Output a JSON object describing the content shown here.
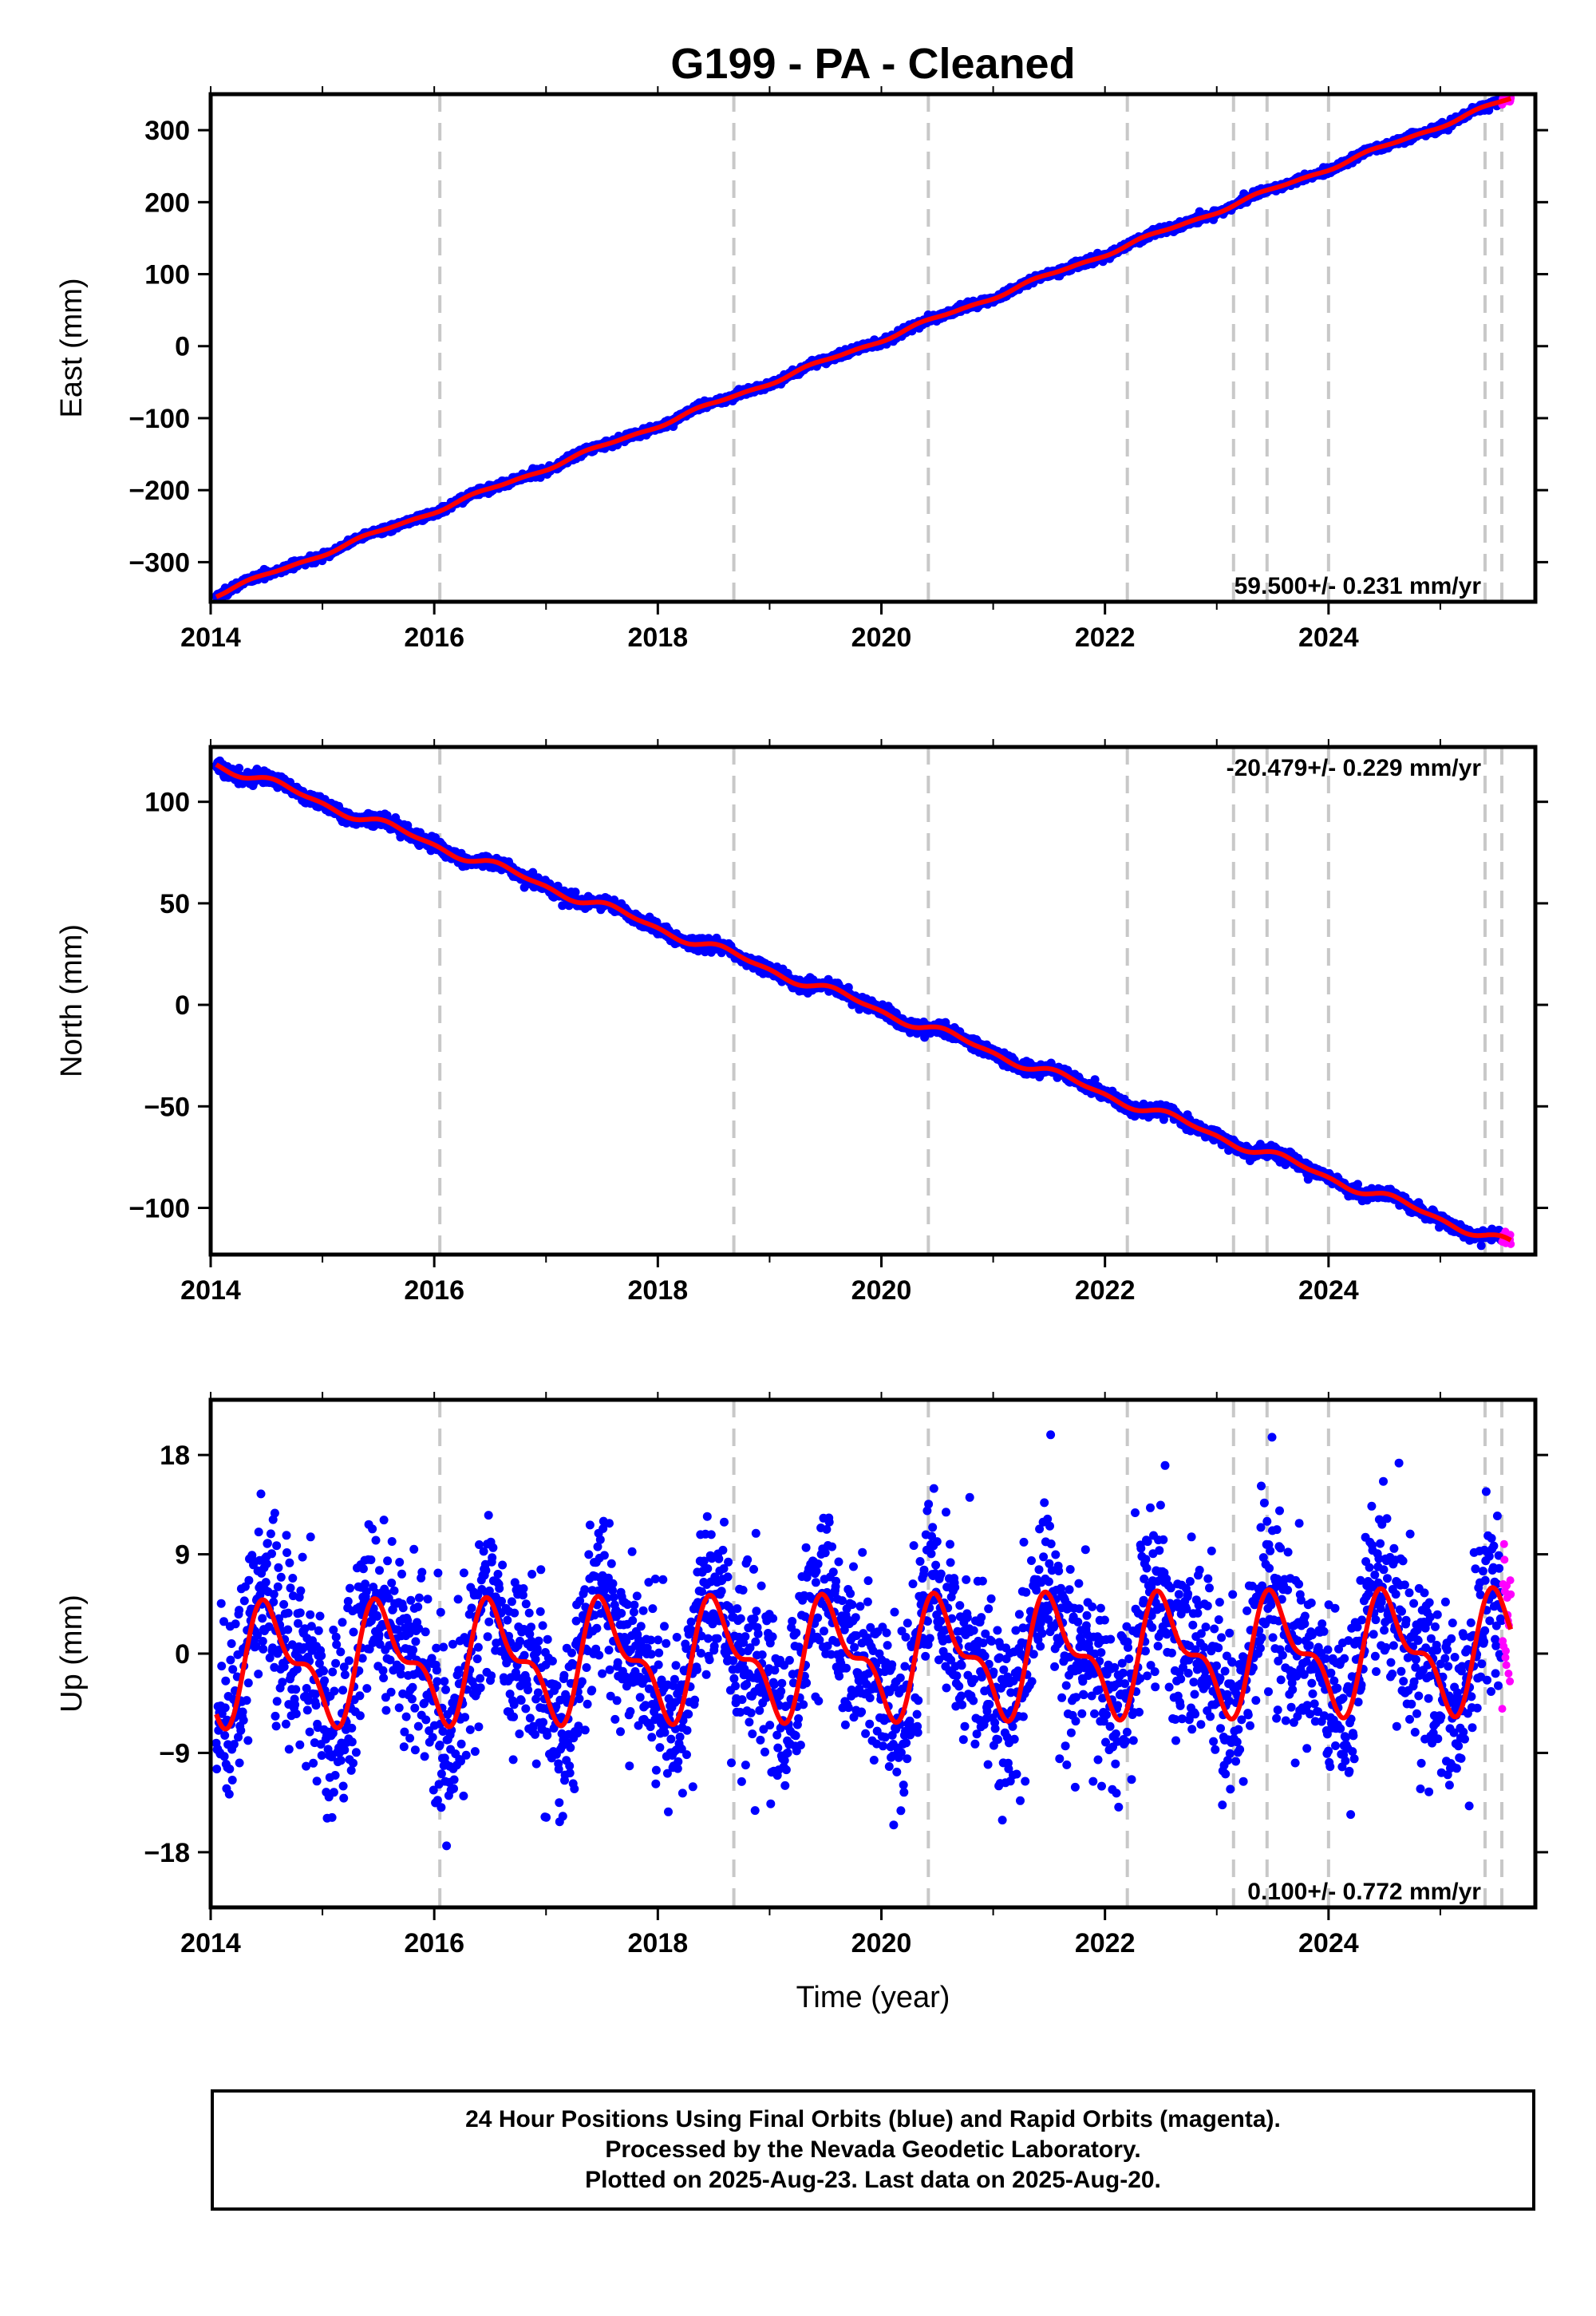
{
  "title": "G199  - PA - Cleaned",
  "x_axis_label": "Time (year)",
  "footer": {
    "line1": "24 Hour Positions Using Final Orbits (blue) and Rapid Orbits (magenta).",
    "line2": "Processed by the Nevada Geodetic Laboratory.",
    "line3": "Plotted on 2025-Aug-23. Last data on 2025-Aug-20."
  },
  "colors": {
    "final": "#0000ff",
    "rapid": "#ff00ff",
    "model": "#ff0000",
    "event": "#c8c8c8"
  },
  "event_years": [
    2016.05,
    2018.68,
    2020.42,
    2022.2,
    2023.15,
    2023.45,
    2024.0,
    2025.4,
    2025.55
  ],
  "chart_data": [
    {
      "type": "scatter",
      "ylabel": "East (mm)",
      "xlim": [
        2014,
        2025.85
      ],
      "ylim": [
        -355,
        350
      ],
      "xticks": [
        "2014",
        "2016",
        "2018",
        "2020",
        "2022",
        "2024"
      ],
      "yticks": [
        "300",
        "200",
        "100",
        "0",
        "−100",
        "−200",
        "−300"
      ],
      "ytick_values": [
        300,
        200,
        100,
        0,
        -100,
        -200,
        -300
      ],
      "rate_label": "59.500+/- 0.231 mm/yr",
      "rate_position": "bottom-right",
      "data_start": 2014.05,
      "data_end": 2025.63,
      "rapid_start": 2025.55,
      "trend": {
        "start_value": -345,
        "rate": 59.5
      },
      "seasonal": {
        "amplitude": 2.5,
        "phase": 0.2
      },
      "scatter_sd": 2.5
    },
    {
      "type": "scatter",
      "ylabel": "North (mm)",
      "xlim": [
        2014,
        2025.85
      ],
      "ylim": [
        -123,
        127
      ],
      "xticks": [
        "2014",
        "2016",
        "2018",
        "2020",
        "2022",
        "2024"
      ],
      "yticks": [
        "100",
        "50",
        "0",
        "−50",
        "−100"
      ],
      "ytick_values": [
        100,
        50,
        0,
        -50,
        -100
      ],
      "rate_label": "-20.479+/- 0.229 mm/yr",
      "rate_position": "top-right",
      "data_start": 2014.05,
      "data_end": 2025.63,
      "rapid_start": 2025.55,
      "trend": {
        "start_value": 119,
        "rate": -20.479
      },
      "seasonal": {
        "amplitude": 2.0,
        "phase": 0.4
      },
      "scatter_sd": 1.5
    },
    {
      "type": "scatter",
      "ylabel": "Up (mm)",
      "xlim": [
        2014,
        2025.85
      ],
      "ylim": [
        -23,
        23
      ],
      "xticks": [
        "2014",
        "2016",
        "2018",
        "2020",
        "2022",
        "2024"
      ],
      "yticks": [
        "18",
        "9",
        "0",
        "−9",
        "−18"
      ],
      "ytick_values": [
        18,
        9,
        0,
        -9,
        -18
      ],
      "rate_label": "0.100+/- 0.772 mm/yr",
      "rate_position": "bottom-right",
      "data_start": 2014.05,
      "data_end": 2025.63,
      "rapid_start": 2025.55,
      "trend": {
        "start_value": -1,
        "rate": 0.1
      },
      "seasonal": {
        "amplitude": 4.5,
        "phase": 0.3
      },
      "scatter_sd": 4.0
    }
  ]
}
